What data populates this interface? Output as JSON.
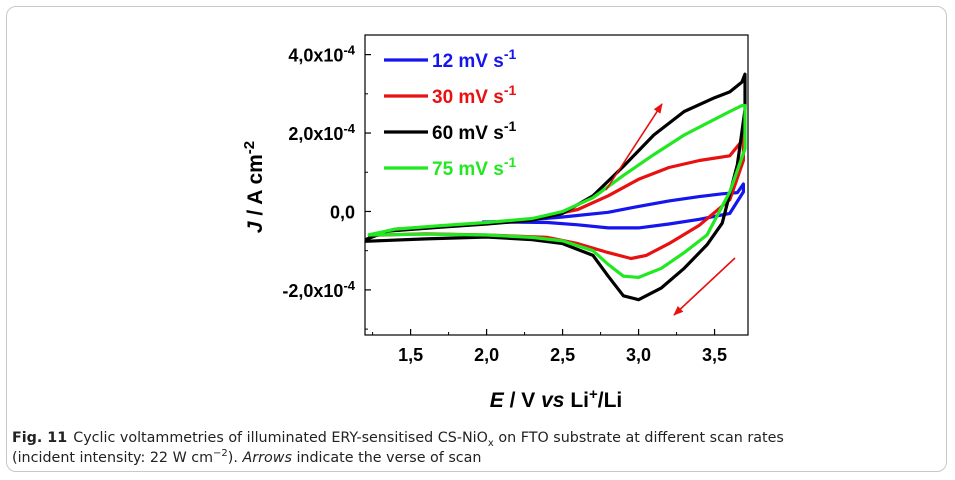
{
  "caption": {
    "label": "Fig. 11",
    "text1": "Cyclic voltammetries of illuminated ERY-sensitised CS-NiO",
    "sub1": "x",
    "text2": " on FTO substrate at different scan rates",
    "text3": "(incident intensity: 22 W cm",
    "sup1": "−2",
    "text4": "). ",
    "italic1": "Arrows",
    "text5": " indicate the verse of scan"
  },
  "chart_data": {
    "type": "line",
    "xlabel": {
      "italic": "E",
      "rest": " / V ",
      "vs": "vs",
      "li": " Li",
      "plus": "+",
      "tail": "/Li"
    },
    "ylabel": {
      "italic": "J",
      "rest": " / A cm",
      "exp": "-2"
    },
    "xlim": [
      1.2,
      3.72
    ],
    "ylim": [
      -0.000315,
      0.00045
    ],
    "x_ticks": [
      {
        "v": 1.5,
        "label": "1,5"
      },
      {
        "v": 2.0,
        "label": "2,0"
      },
      {
        "v": 2.5,
        "label": "2,5"
      },
      {
        "v": 3.0,
        "label": "3,0"
      },
      {
        "v": 3.5,
        "label": "3,5"
      }
    ],
    "y_ticks": [
      {
        "v": 0.0004,
        "base": "4,0x10",
        "exp": "-4"
      },
      {
        "v": 0.0002,
        "base": "2,0x10",
        "exp": "-4"
      },
      {
        "v": 0,
        "base": "0,0",
        "exp": ""
      },
      {
        "v": -0.0002,
        "base": "-2,0x10",
        "exp": "-4"
      }
    ],
    "legend_position": "top-left",
    "series": [
      {
        "name": "12 mV s",
        "name_exp": "-1",
        "color": "#1515ee",
        "points": [
          [
            1.97,
            -0.27
          ],
          [
            2.2,
            -0.24
          ],
          [
            2.5,
            -0.14
          ],
          [
            2.8,
            -0.02
          ],
          [
            3.0,
            0.13
          ],
          [
            3.2,
            0.27
          ],
          [
            3.4,
            0.38
          ],
          [
            3.55,
            0.45
          ],
          [
            3.65,
            0.48
          ],
          [
            3.69,
            0.7
          ],
          [
            3.69,
            0.5
          ],
          [
            3.6,
            -0.05
          ],
          [
            3.4,
            -0.2
          ],
          [
            3.2,
            -0.32
          ],
          [
            3.0,
            -0.42
          ],
          [
            2.8,
            -0.42
          ],
          [
            2.6,
            -0.34
          ],
          [
            2.4,
            -0.28
          ],
          [
            2.2,
            -0.27
          ],
          [
            1.97,
            -0.27
          ]
        ]
      },
      {
        "name": "30 mV s",
        "name_exp": "-1",
        "color": "#e81010",
        "points": [
          [
            1.22,
            -0.63
          ],
          [
            1.4,
            -0.45
          ],
          [
            1.7,
            -0.38
          ],
          [
            2.0,
            -0.3
          ],
          [
            2.3,
            -0.2
          ],
          [
            2.6,
            0.05
          ],
          [
            2.8,
            0.4
          ],
          [
            3.0,
            0.82
          ],
          [
            3.2,
            1.12
          ],
          [
            3.4,
            1.3
          ],
          [
            3.6,
            1.42
          ],
          [
            3.67,
            1.75
          ],
          [
            3.69,
            2.1
          ],
          [
            3.69,
            1.3
          ],
          [
            3.6,
            0.3
          ],
          [
            3.4,
            -0.35
          ],
          [
            3.2,
            -0.82
          ],
          [
            3.05,
            -1.12
          ],
          [
            2.95,
            -1.2
          ],
          [
            2.8,
            -1.05
          ],
          [
            2.6,
            -0.82
          ],
          [
            2.4,
            -0.66
          ],
          [
            2.0,
            -0.6
          ],
          [
            1.6,
            -0.57
          ],
          [
            1.3,
            -0.6
          ],
          [
            1.22,
            -0.63
          ]
        ]
      },
      {
        "name": "60 mV s",
        "name_exp": "-1",
        "color": "#000000",
        "points": [
          [
            1.2,
            -0.72
          ],
          [
            1.35,
            -0.5
          ],
          [
            1.7,
            -0.4
          ],
          [
            2.0,
            -0.32
          ],
          [
            2.3,
            -0.22
          ],
          [
            2.5,
            -0.05
          ],
          [
            2.7,
            0.4
          ],
          [
            2.9,
            1.15
          ],
          [
            3.1,
            1.95
          ],
          [
            3.3,
            2.55
          ],
          [
            3.5,
            2.9
          ],
          [
            3.6,
            3.05
          ],
          [
            3.68,
            3.3
          ],
          [
            3.7,
            3.5
          ],
          [
            3.7,
            2.6
          ],
          [
            3.65,
            1.2
          ],
          [
            3.55,
            -0.3
          ],
          [
            3.45,
            -0.85
          ],
          [
            3.3,
            -1.45
          ],
          [
            3.15,
            -1.95
          ],
          [
            3.0,
            -2.25
          ],
          [
            2.9,
            -2.15
          ],
          [
            2.8,
            -1.65
          ],
          [
            2.7,
            -1.12
          ],
          [
            2.5,
            -0.82
          ],
          [
            2.3,
            -0.72
          ],
          [
            2.0,
            -0.65
          ],
          [
            1.6,
            -0.7
          ],
          [
            1.2,
            -0.76
          ]
        ]
      },
      {
        "name": "75 mV s",
        "name_exp": "-1",
        "color": "#22e822",
        "points": [
          [
            1.22,
            -0.6
          ],
          [
            1.4,
            -0.45
          ],
          [
            1.7,
            -0.36
          ],
          [
            2.0,
            -0.28
          ],
          [
            2.3,
            -0.18
          ],
          [
            2.5,
            0.0
          ],
          [
            2.7,
            0.35
          ],
          [
            2.9,
            0.92
          ],
          [
            3.1,
            1.45
          ],
          [
            3.3,
            1.95
          ],
          [
            3.5,
            2.35
          ],
          [
            3.6,
            2.55
          ],
          [
            3.68,
            2.7
          ],
          [
            3.7,
            2.7
          ],
          [
            3.7,
            1.6
          ],
          [
            3.6,
            0.5
          ],
          [
            3.45,
            -0.6
          ],
          [
            3.3,
            -1.05
          ],
          [
            3.15,
            -1.45
          ],
          [
            3.0,
            -1.68
          ],
          [
            2.9,
            -1.65
          ],
          [
            2.8,
            -1.35
          ],
          [
            2.7,
            -1.0
          ],
          [
            2.5,
            -0.75
          ],
          [
            2.3,
            -0.66
          ],
          [
            2.0,
            -0.6
          ],
          [
            1.6,
            -0.58
          ],
          [
            1.22,
            -0.6
          ]
        ]
      }
    ],
    "y_scale_note": "points y in units of 1e-4 A cm-2"
  },
  "arrows_color": "#e81010"
}
